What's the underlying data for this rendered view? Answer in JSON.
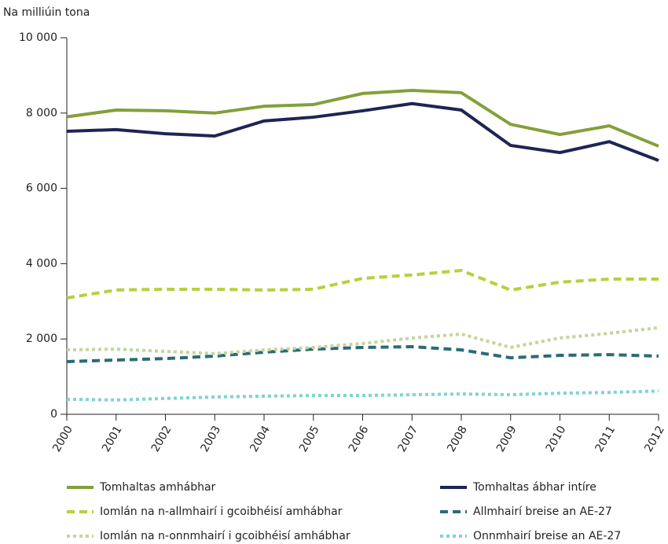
{
  "chart_data": {
    "type": "line",
    "y_axis_label": "Na milliúin tona",
    "categories": [
      "2000",
      "2001",
      "2002",
      "2003",
      "2004",
      "2005",
      "2006",
      "2007",
      "2008",
      "2009",
      "2010",
      "2011",
      "2012"
    ],
    "ylim": [
      0,
      10000
    ],
    "yticks": [
      0,
      {
        "value": 2000,
        "label": "2 000"
      },
      {
        "value": 4000,
        "label": "4 000"
      },
      {
        "value": 6000,
        "label": "6 000"
      },
      {
        "value": 8000,
        "label": "8 000"
      },
      {
        "value": 10000,
        "label": "10 000"
      }
    ],
    "grid": false,
    "series": [
      {
        "name": "Tomhaltas amhábhar",
        "color": "#83a03a",
        "style": "solid",
        "values": [
          7900,
          8080,
          8060,
          8000,
          8180,
          8225,
          8520,
          8600,
          8540,
          7700,
          7430,
          7660,
          7120
        ]
      },
      {
        "name": "Tomhaltas ábhar intíre",
        "color": "#1f2456",
        "style": "solid",
        "values": [
          7515,
          7560,
          7450,
          7390,
          7790,
          7890,
          8060,
          8250,
          8080,
          7140,
          6950,
          7240,
          6740
        ]
      },
      {
        "name": "Iomlán na n-allmhairí i gcoibhéisí amhábhar",
        "color": "#b8cf3e",
        "style": "dashed",
        "values": [
          3090,
          3300,
          3320,
          3320,
          3300,
          3320,
          3610,
          3700,
          3820,
          3300,
          3510,
          3590,
          3590
        ]
      },
      {
        "name": "Allmhairí breise an AE-27",
        "color": "#2b6b78",
        "style": "dashed",
        "values": [
          1400,
          1440,
          1480,
          1545,
          1650,
          1730,
          1775,
          1795,
          1710,
          1500,
          1565,
          1585,
          1545
        ]
      },
      {
        "name": "Iomlán na n-onnmhairí i gcoibhéisí amhábhar",
        "color": "#c3d69b",
        "style": "dotted",
        "values": [
          1710,
          1730,
          1670,
          1610,
          1710,
          1775,
          1880,
          2025,
          2130,
          1775,
          2025,
          2150,
          2300
        ]
      },
      {
        "name": "Onnmhairí breise an AE-27",
        "color": "#7fd4cd",
        "style": "dotted",
        "values": [
          400,
          380,
          420,
          460,
          480,
          500,
          500,
          520,
          540,
          520,
          560,
          580,
          620
        ]
      }
    ]
  }
}
